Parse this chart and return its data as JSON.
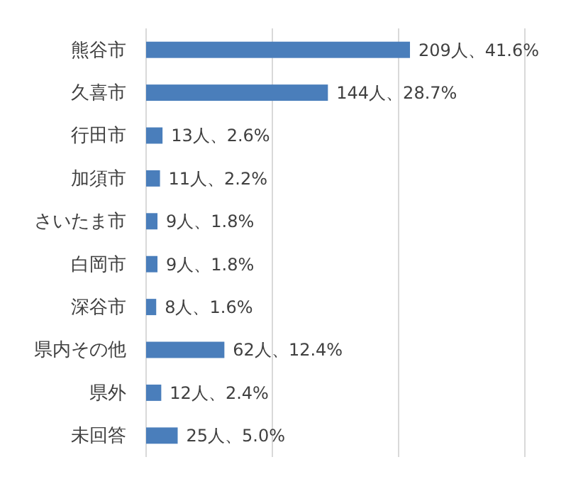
{
  "chart_data": {
    "type": "bar",
    "orientation": "horizontal",
    "categories": [
      "熊谷市",
      "久喜市",
      "行田市",
      "加須市",
      "さいたま市",
      "白岡市",
      "深谷市",
      "県内その他",
      "県外",
      "未回答"
    ],
    "values": [
      209,
      144,
      13,
      11,
      9,
      9,
      8,
      62,
      12,
      25
    ],
    "value_labels": [
      "209人、41.6%",
      "144人、28.7%",
      "13人、2.6%",
      "11人、2.2%",
      "9人、1.8%",
      "9人、1.8%",
      "8人、1.6%",
      "62人、12.4%",
      "12人、2.4%",
      "25人、5.0%"
    ],
    "color": "#4a7ebb",
    "xlim": [
      0,
      300
    ],
    "xticks": [
      {
        "value": 0,
        "label": null
      },
      {
        "value": 100,
        "label": null
      },
      {
        "value": 200,
        "label": null
      },
      {
        "value": 300,
        "label": null
      }
    ],
    "grid": "x",
    "tick_labels": "y"
  }
}
